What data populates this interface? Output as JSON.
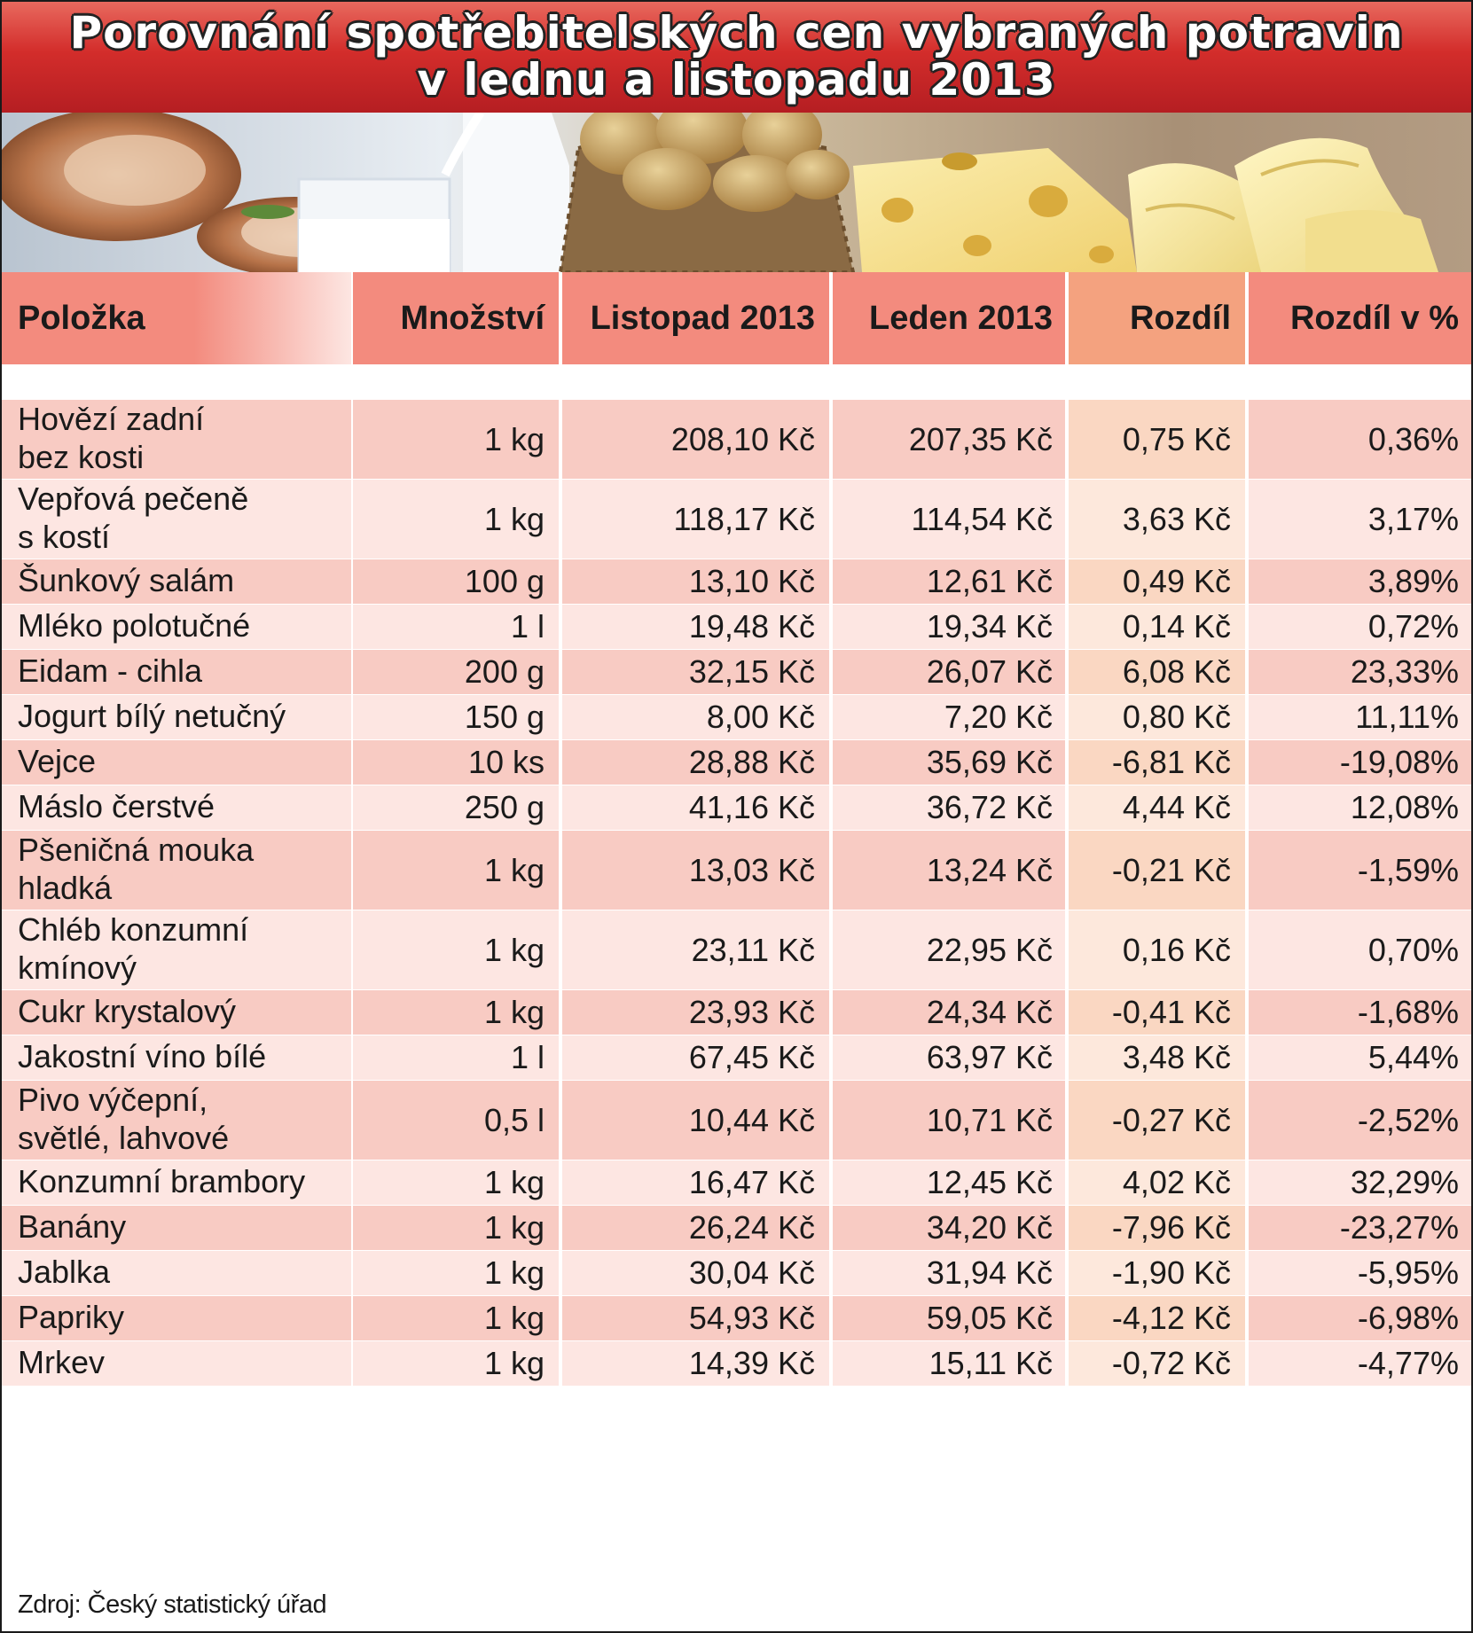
{
  "title": {
    "line1": "Porovnání spotřebitelských cen vybraných potravin",
    "line2": "v lednu a listopadu 2013"
  },
  "colors": {
    "title_red": "#d32d2b",
    "header_salmon": "#f38b7e",
    "header_orange": "#f4a27f",
    "row_dark": "#f8cbc3",
    "row_light": "#fde6e2",
    "diff_dark": "#fad7c2",
    "diff_light": "#fde8dc"
  },
  "photo_strip_items": [
    "pork-roast-icon",
    "milk-icon",
    "potatoes-sack-icon",
    "cheese-icon",
    "butter-icon"
  ],
  "chart_data": {
    "type": "table",
    "columns": [
      "Položka",
      "Množství",
      "Listopad 2013",
      "Leden 2013",
      "Rozdíl",
      "Rozdíl v %"
    ],
    "rows": [
      {
        "item": [
          "Hovězí zadní",
          "bez kosti"
        ],
        "qty": "1 kg",
        "nov": "208,10 Kč",
        "jan": "207,35 Kč",
        "diff": "0,75 Kč",
        "pct": "0,36%"
      },
      {
        "item": [
          "Vepřová pečeně",
          "s kostí"
        ],
        "qty": "1 kg",
        "nov": "118,17 Kč",
        "jan": "114,54 Kč",
        "diff": "3,63 Kč",
        "pct": "3,17%"
      },
      {
        "item": [
          "Šunkový salám"
        ],
        "qty": "100 g",
        "nov": "13,10 Kč",
        "jan": "12,61 Kč",
        "diff": "0,49 Kč",
        "pct": "3,89%"
      },
      {
        "item": [
          "Mléko polotučné"
        ],
        "qty": "1 l",
        "nov": "19,48 Kč",
        "jan": "19,34 Kč",
        "diff": "0,14 Kč",
        "pct": "0,72%"
      },
      {
        "item": [
          "Eidam - cihla"
        ],
        "qty": "200 g",
        "nov": "32,15 Kč",
        "jan": "26,07 Kč",
        "diff": "6,08 Kč",
        "pct": "23,33%"
      },
      {
        "item": [
          "Jogurt bílý netučný"
        ],
        "qty": "150 g",
        "nov": "8,00 Kč",
        "jan": "7,20 Kč",
        "diff": "0,80 Kč",
        "pct": "11,11%"
      },
      {
        "item": [
          "Vejce"
        ],
        "qty": "10 ks",
        "nov": "28,88 Kč",
        "jan": "35,69 Kč",
        "diff": "-6,81 Kč",
        "pct": "-19,08%"
      },
      {
        "item": [
          "Máslo čerstvé"
        ],
        "qty": "250 g",
        "nov": "41,16 Kč",
        "jan": "36,72 Kč",
        "diff": "4,44 Kč",
        "pct": "12,08%"
      },
      {
        "item": [
          "Pšeničná mouka",
          "hladká"
        ],
        "qty": "1 kg",
        "nov": "13,03 Kč",
        "jan": "13,24 Kč",
        "diff": "-0,21 Kč",
        "pct": "-1,59%"
      },
      {
        "item": [
          "Chléb konzumní",
          "kmínový"
        ],
        "qty": "1 kg",
        "nov": "23,11 Kč",
        "jan": "22,95 Kč",
        "diff": "0,16 Kč",
        "pct": "0,70%"
      },
      {
        "item": [
          "Cukr krystalový"
        ],
        "qty": "1 kg",
        "nov": "23,93 Kč",
        "jan": "24,34 Kč",
        "diff": "-0,41 Kč",
        "pct": "-1,68%"
      },
      {
        "item": [
          "Jakostní víno bílé"
        ],
        "qty": "1 l",
        "nov": "67,45 Kč",
        "jan": "63,97 Kč",
        "diff": "3,48 Kč",
        "pct": "5,44%"
      },
      {
        "item": [
          "Pivo výčepní,",
          "světlé, lahvové"
        ],
        "qty": "0,5 l",
        "nov": "10,44 Kč",
        "jan": "10,71 Kč",
        "diff": "-0,27 Kč",
        "pct": "-2,52%"
      },
      {
        "item": [
          "Konzumní brambory"
        ],
        "qty": "1 kg",
        "nov": "16,47 Kč",
        "jan": "12,45 Kč",
        "diff": "4,02 Kč",
        "pct": "32,29%"
      },
      {
        "item": [
          "Banány"
        ],
        "qty": "1 kg",
        "nov": "26,24 Kč",
        "jan": "34,20 Kč",
        "diff": "-7,96 Kč",
        "pct": "-23,27%"
      },
      {
        "item": [
          "Jablka"
        ],
        "qty": "1 kg",
        "nov": "30,04 Kč",
        "jan": "31,94 Kč",
        "diff": "-1,90 Kč",
        "pct": "-5,95%"
      },
      {
        "item": [
          "Papriky"
        ],
        "qty": "1 kg",
        "nov": "54,93 Kč",
        "jan": "59,05 Kč",
        "diff": "-4,12 Kč",
        "pct": "-6,98%"
      },
      {
        "item": [
          "Mrkev"
        ],
        "qty": "1 kg",
        "nov": "14,39 Kč",
        "jan": "15,11 Kč",
        "diff": "-0,72 Kč",
        "pct": "-4,77%"
      }
    ]
  },
  "source": "Zdroj: Český statistický úřad"
}
